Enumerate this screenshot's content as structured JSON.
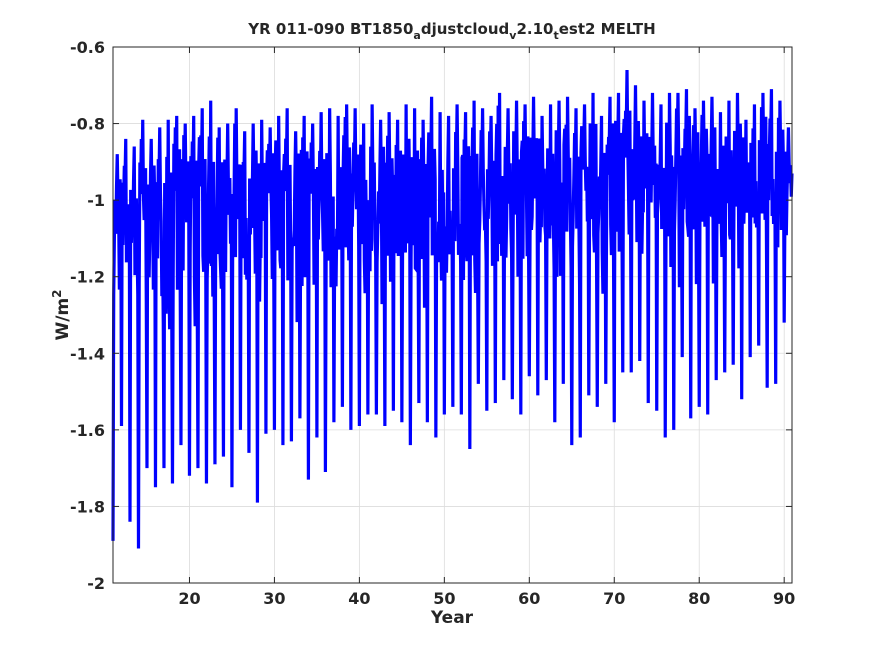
{
  "chart_data": {
    "type": "line",
    "title": {
      "prefix": "YR 011-090 BT1850",
      "sub1": "a",
      "mid1": "djustcloud",
      "sub2": "v",
      "mid2": "2.10",
      "sub3": "t",
      "suffix": "est2 MELTH"
    },
    "xlabel": "Year",
    "ylabel": "W/m",
    "ylabel_sup": "2",
    "xlim": [
      11,
      90.92
    ],
    "ylim": [
      -2,
      -0.6
    ],
    "xticks": [
      20,
      30,
      40,
      50,
      60,
      70,
      80,
      90
    ],
    "yticks": [
      -2,
      -1.8,
      -1.6,
      -1.4,
      -1.2,
      -1,
      -0.8,
      -0.6
    ],
    "ytick_labels": [
      "-2",
      "-1.8",
      "-1.6",
      "-1.4",
      "-1.2",
      "-1",
      "-0.8",
      "-0.6"
    ],
    "grid": true,
    "line_color": "#0000ff",
    "series": [
      {
        "start_year": 11,
        "step_years": 0.0833333,
        "annual_min": [
          -1.89,
          -1.59,
          -1.84,
          -1.91,
          -1.7,
          -1.75,
          -1.7,
          -1.74,
          -1.64,
          -1.72,
          -1.7,
          -1.74,
          -1.69,
          -1.67,
          -1.75,
          -1.6,
          -1.66,
          -1.79,
          -1.61,
          -1.6,
          -1.64,
          -1.63,
          -1.57,
          -1.73,
          -1.62,
          -1.71,
          -1.58,
          -1.54,
          -1.6,
          -1.59,
          -1.56,
          -1.56,
          -1.59,
          -1.55,
          -1.58,
          -1.64,
          -1.53,
          -1.58,
          -1.62,
          -1.56,
          -1.54,
          -1.56,
          -1.65,
          -1.48,
          -1.55,
          -1.53,
          -1.47,
          -1.52,
          -1.56,
          -1.46,
          -1.51,
          -1.47,
          -1.58,
          -1.48,
          -1.64,
          -1.62,
          -1.51,
          -1.54,
          -1.48,
          -1.58,
          -1.45,
          -1.45,
          -1.42,
          -1.53,
          -1.55,
          -1.62,
          -1.6,
          -1.41,
          -1.57,
          -1.54,
          -1.56,
          -1.47,
          -1.45,
          -1.43,
          -1.52,
          -1.41,
          -1.38,
          -1.49,
          -1.48,
          -1.32
        ],
        "annual_max": [
          -0.88,
          -0.84,
          -0.86,
          -0.79,
          -0.84,
          -0.81,
          -0.79,
          -0.78,
          -0.8,
          -0.78,
          -0.76,
          -0.74,
          -0.81,
          -0.8,
          -0.76,
          -0.82,
          -0.8,
          -0.79,
          -0.81,
          -0.78,
          -0.76,
          -0.82,
          -0.78,
          -0.8,
          -0.77,
          -0.76,
          -0.78,
          -0.75,
          -0.76,
          -0.8,
          -0.75,
          -0.79,
          -0.77,
          -0.79,
          -0.75,
          -0.76,
          -0.79,
          -0.73,
          -0.77,
          -0.78,
          -0.75,
          -0.77,
          -0.74,
          -0.76,
          -0.78,
          -0.72,
          -0.76,
          -0.74,
          -0.75,
          -0.73,
          -0.78,
          -0.75,
          -0.74,
          -0.73,
          -0.76,
          -0.75,
          -0.72,
          -0.78,
          -0.73,
          -0.72,
          -0.66,
          -0.7,
          -0.74,
          -0.72,
          -0.75,
          -0.72,
          -0.72,
          -0.71,
          -0.76,
          -0.74,
          -0.73,
          -0.77,
          -0.74,
          -0.72,
          -0.79,
          -0.75,
          -0.72,
          -0.71,
          -0.74,
          -0.81
        ],
        "annual_mid": [
          -1.05,
          -1.08,
          -1.07,
          -1.08,
          -1.07,
          -1.08,
          -1.08,
          -1.07,
          -1.08,
          -1.07,
          -1.07,
          -1.08,
          -1.07,
          -1.06,
          -1.08,
          -1.07,
          -1.06,
          -1.08,
          -1.06,
          -1.07,
          -1.07,
          -1.05,
          -1.06,
          -1.07,
          -1.06,
          -1.05,
          -1.06,
          -1.07,
          -1.05,
          -1.06,
          -1.05,
          -1.05,
          -1.06,
          -1.04,
          -1.05,
          -1.04,
          -1.05,
          -1.03,
          -1.04,
          -1.05,
          -1.04,
          -1.03,
          -1.03,
          -1.04,
          -1.03,
          -1.02,
          -1.03,
          -1.02,
          -1.01,
          -1.02,
          -1.01,
          -1.0,
          -1.01,
          -1.0,
          -0.99,
          -1.0,
          -0.99,
          -0.99,
          -1.0,
          -0.98,
          -0.99,
          -0.98,
          -0.99,
          -0.98,
          -0.97,
          -0.98,
          -0.97,
          -0.98,
          -0.97,
          -0.96,
          -0.97,
          -0.98,
          -0.96,
          -0.97,
          -0.96,
          -0.97,
          -0.96,
          -0.97,
          -0.96,
          -0.97
        ]
      }
    ]
  }
}
